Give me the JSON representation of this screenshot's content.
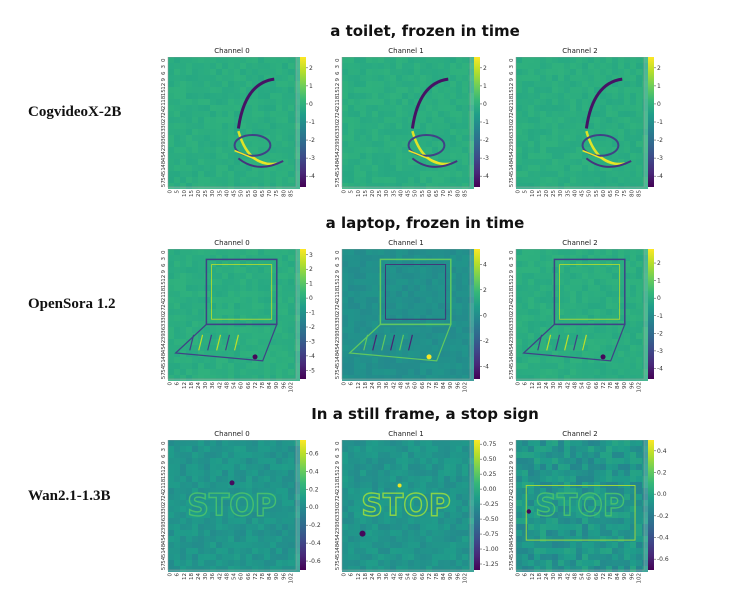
{
  "rows": [
    {
      "model": "CogvideoX-2B",
      "prompt": "a toilet, frozen in time",
      "theme": "toilet",
      "x_ticks": [
        "0",
        "5",
        "10",
        "15",
        "20",
        "25",
        "30",
        "35",
        "40",
        "45",
        "50",
        "55",
        "60",
        "65",
        "70",
        "75",
        "80",
        "85"
      ],
      "y_ticks": [
        "0",
        "3",
        "6",
        "9",
        "12",
        "15",
        "18",
        "21",
        "24",
        "27",
        "30",
        "33",
        "36",
        "39",
        "42",
        "45",
        "48",
        "51",
        "54",
        "57"
      ],
      "channels": [
        {
          "title": "Channel 0",
          "cbar": [
            "2",
            "1",
            "0",
            "-1",
            "-2",
            "-3",
            "-4"
          ],
          "range": [
            -4.6,
            2.6
          ]
        },
        {
          "title": "Channel 1",
          "cbar": [
            "2",
            "1",
            "0",
            "-1",
            "-2",
            "-3",
            "-4"
          ],
          "range": [
            -4.6,
            2.6
          ]
        },
        {
          "title": "Channel 2",
          "cbar": [
            "2",
            "1",
            "0",
            "-1",
            "-2",
            "-3",
            "-4"
          ],
          "range": [
            -4.6,
            2.6
          ]
        }
      ]
    },
    {
      "model": "OpenSora 1.2",
      "prompt": "a laptop, frozen in time",
      "theme": "laptop",
      "x_ticks": [
        "0",
        "6",
        "12",
        "18",
        "24",
        "30",
        "36",
        "42",
        "48",
        "54",
        "60",
        "66",
        "72",
        "78",
        "84",
        "90",
        "96",
        "102"
      ],
      "y_ticks": [
        "0",
        "3",
        "6",
        "9",
        "12",
        "15",
        "18",
        "21",
        "24",
        "27",
        "30",
        "33",
        "36",
        "39",
        "42",
        "45",
        "48",
        "51",
        "54",
        "57"
      ],
      "channels": [
        {
          "title": "Channel 0",
          "cbar": [
            "3",
            "2",
            "1",
            "0",
            "-1",
            "-2",
            "-3",
            "-4",
            "-5"
          ],
          "range": [
            -5.6,
            3.4
          ]
        },
        {
          "title": "Channel 1",
          "cbar": [
            "4",
            "2",
            "0",
            "-2",
            "-4"
          ],
          "range": [
            -5.0,
            5.2
          ]
        },
        {
          "title": "Channel 2",
          "cbar": [
            "2",
            "1",
            "0",
            "-1",
            "-2",
            "-3",
            "-4"
          ],
          "range": [
            -4.6,
            2.8
          ]
        }
      ]
    },
    {
      "model": "Wan2.1-1.3B",
      "prompt": "In a still frame, a stop sign",
      "theme": "stop",
      "x_ticks": [
        "0",
        "6",
        "12",
        "18",
        "24",
        "30",
        "36",
        "42",
        "48",
        "54",
        "60",
        "66",
        "72",
        "78",
        "84",
        "90",
        "96",
        "102"
      ],
      "y_ticks": [
        "0",
        "3",
        "6",
        "9",
        "12",
        "15",
        "18",
        "21",
        "24",
        "27",
        "30",
        "33",
        "36",
        "39",
        "42",
        "45",
        "48",
        "51",
        "54",
        "57"
      ],
      "channels": [
        {
          "title": "Channel 0",
          "cbar": [
            "0.6",
            "0.4",
            "0.2",
            "0.0",
            "-0.2",
            "-0.4",
            "-0.6"
          ],
          "range": [
            -0.7,
            0.75
          ]
        },
        {
          "title": "Channel 1",
          "cbar": [
            "0.75",
            "0.50",
            "0.25",
            "0.00",
            "-0.25",
            "-0.50",
            "-0.75",
            "-1.00",
            "-1.25"
          ],
          "range": [
            -1.35,
            0.82
          ]
        },
        {
          "title": "Channel 2",
          "cbar": [
            "0.4",
            "0.2",
            "0.0",
            "-0.2",
            "-0.4",
            "-0.6"
          ],
          "range": [
            -0.7,
            0.5
          ]
        }
      ]
    }
  ],
  "colors": {
    "viridis": [
      "#440154",
      "#482878",
      "#3e4989",
      "#31688e",
      "#26828e",
      "#1f9e89",
      "#35b779",
      "#6ece58",
      "#b5de2b",
      "#fde725"
    ]
  }
}
